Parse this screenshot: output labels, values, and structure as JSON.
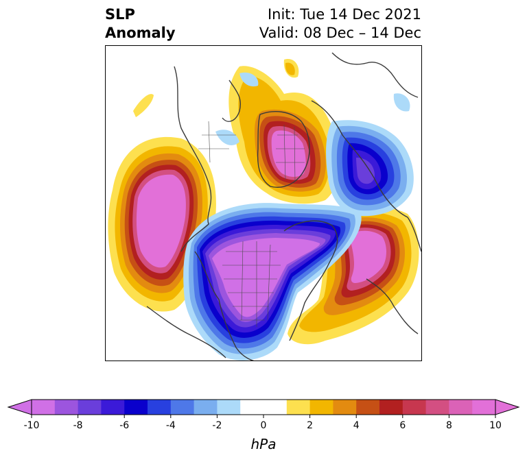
{
  "title": {
    "left_line1": "SLP",
    "left_line2": "Anomaly",
    "right_line1": "Init: Tue 14 Dec 2021",
    "right_line2": "Valid: 08 Dec – 14 Dec"
  },
  "colorbar": {
    "unit": "hPa",
    "ticks": [
      "-10",
      "-8",
      "-6",
      "-4",
      "-2",
      "0",
      "2",
      "4",
      "6",
      "8",
      "10"
    ],
    "colors": [
      "#d070e6",
      "#9c55de",
      "#6a3edb",
      "#3b1ad8",
      "#0a00cc",
      "#2840df",
      "#4e78e8",
      "#7aaeef",
      "#acdaf9",
      "#ffffff",
      "#ffffff",
      "#fde04f",
      "#f2b600",
      "#e38b10",
      "#c65015",
      "#b22020",
      "#c7374f",
      "#d34f82",
      "#db62b7",
      "#e270d8"
    ]
  },
  "map": {
    "projection": "north-polar-stereographic",
    "field": "SLP anomaly",
    "coastline_color": "#3a3a3a"
  }
}
